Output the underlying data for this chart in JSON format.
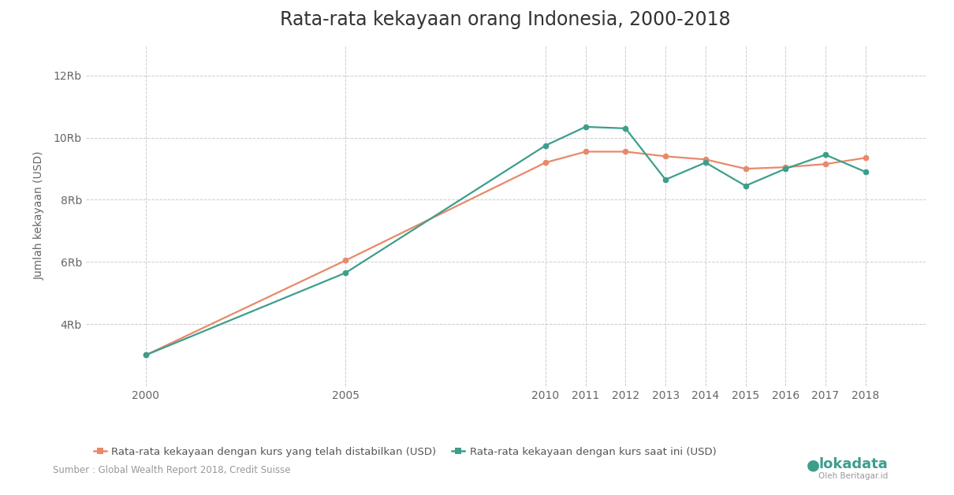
{
  "title": "Rata-rata kekayaan orang Indonesia, 2000-2018",
  "xlabel": "",
  "ylabel": "Jumlah kekayaan (USD)",
  "years": [
    2000,
    2005,
    2010,
    2011,
    2012,
    2013,
    2014,
    2015,
    2016,
    2017,
    2018
  ],
  "series1_label": "Rata-rata kekayaan dengan kurs yang telah distabilkan (USD)",
  "series1_color": "#E8896A",
  "series1_values": [
    3000,
    6050,
    9200,
    9550,
    9550,
    9400,
    9300,
    9000,
    9050,
    9150,
    9350
  ],
  "series2_label": "Rata-rata kekayaan dengan kurs saat ini (USD)",
  "series2_color": "#3D9E8C",
  "series2_values": [
    3000,
    5650,
    9750,
    10350,
    10300,
    8650,
    9200,
    8450,
    9000,
    9450,
    8900
  ],
  "ylim": [
    2000,
    13000
  ],
  "yticks": [
    4000,
    6000,
    8000,
    10000,
    12000
  ],
  "ytick_labels": [
    "4Rb",
    "6Rb",
    "8Rb",
    "10Rb",
    "12Rb"
  ],
  "xlim": [
    1998.5,
    2019.5
  ],
  "background_color": "#FFFFFF",
  "grid_color": "#CCCCCC",
  "source_text": "Sumber : Global Wealth Report 2018, Credit Suisse",
  "title_fontsize": 17,
  "axis_label_fontsize": 10,
  "tick_fontsize": 10,
  "legend_fontsize": 9.5
}
